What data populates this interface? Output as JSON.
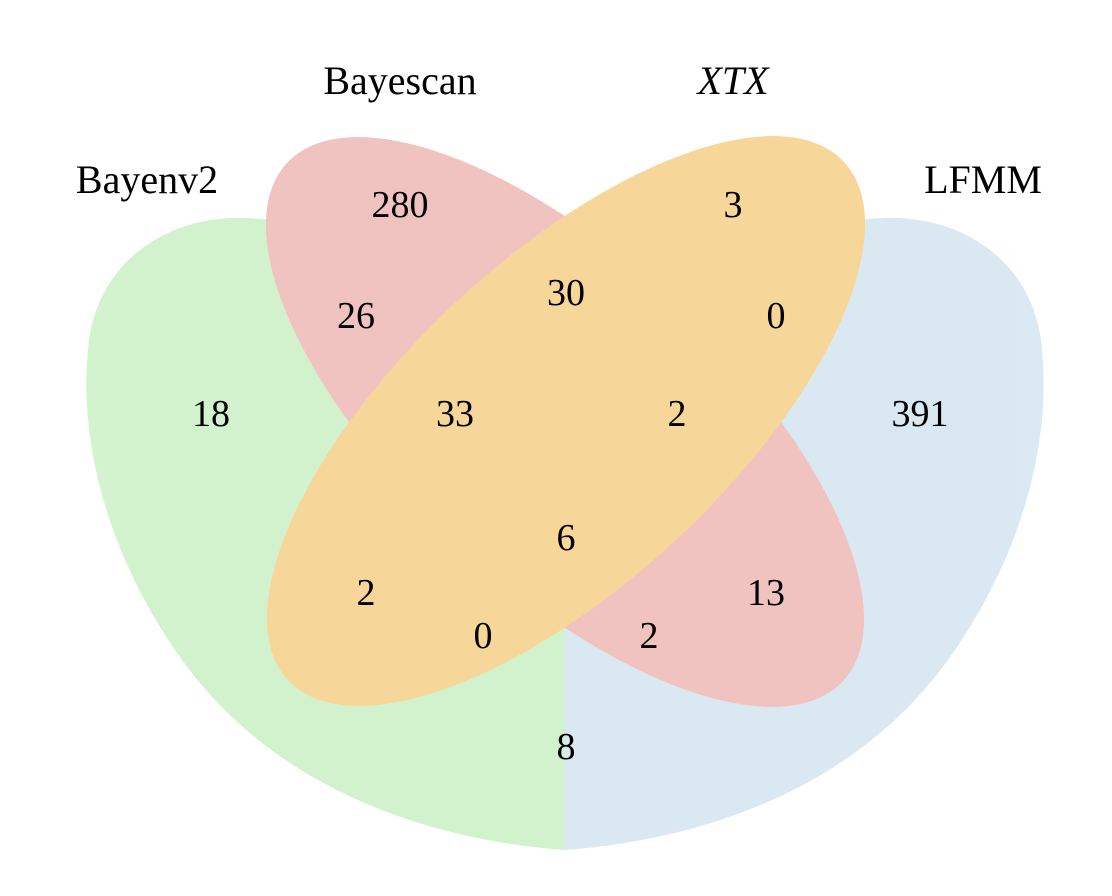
{
  "diagram": {
    "type": "venn-4-set",
    "sets": {
      "bayenv2": {
        "label": "Bayenv2",
        "color": "#b7ebb0",
        "italic": false
      },
      "bayescan": {
        "label": "Bayescan",
        "color": "#e8a09a",
        "italic": false
      },
      "xtx": {
        "label": "XTX",
        "color": "#f3bd5c",
        "italic": true
      },
      "lfmm": {
        "label": "LFMM",
        "color": "#c5dcea",
        "italic": false
      }
    },
    "regions": {
      "bayescan_only": "280",
      "xtx_only": "3",
      "bayenv2_only": "18",
      "lfmm_only": "391",
      "bayenv2_bayescan": "26",
      "bayescan_xtx": "30",
      "xtx_lfmm": "0",
      "bayenv2_bayescan_xtx": "33",
      "bayescan_xtx_lfmm": "2",
      "all_four": "6",
      "bayenv2_xtx": "2",
      "bayescan_lfmm": "13",
      "bayenv2_xtx_lfmm": "0",
      "bayenv2_bayescan_lfmm": "2",
      "bayenv2_lfmm": "8"
    }
  }
}
